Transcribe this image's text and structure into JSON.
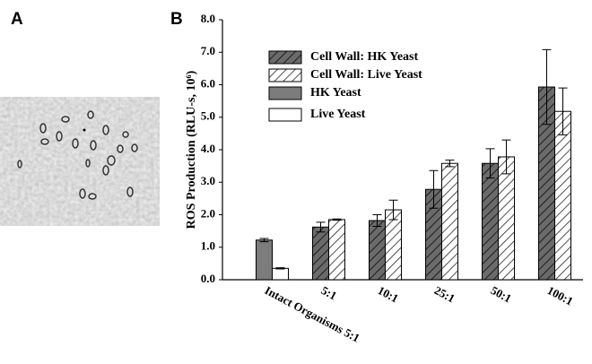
{
  "panel_labels": [
    "A",
    "B"
  ],
  "chart_data": {
    "type": "bar",
    "y_label": "ROS Production (RLU-s, 10⁶)",
    "categories": [
      "Intact Organisms 5:1",
      "5:1",
      "10:1",
      "25:1",
      "50:1",
      "100:1"
    ],
    "series": [
      {
        "name": "Cell Wall: HK Yeast",
        "color": "#6b6b6b",
        "hatch": true,
        "values": [
          null,
          1.62,
          1.82,
          2.78,
          3.58,
          5.93
        ],
        "errors": [
          null,
          0.15,
          0.18,
          0.58,
          0.45,
          1.15
        ]
      },
      {
        "name": "Cell Wall: Live Yeast",
        "color": "#ffffff",
        "hatch": true,
        "values": [
          null,
          1.85,
          2.15,
          3.58,
          3.78,
          5.18
        ],
        "errors": [
          null,
          0.02,
          0.3,
          0.1,
          0.52,
          0.72
        ]
      },
      {
        "name": "HK Yeast",
        "color": "#7c7c7c",
        "hatch": false,
        "values": [
          1.22,
          null,
          null,
          null,
          null,
          null
        ],
        "errors": [
          0.05,
          null,
          null,
          null,
          null,
          null
        ]
      },
      {
        "name": "Live Yeast",
        "color": "#ffffff",
        "hatch": false,
        "values": [
          0.35,
          null,
          null,
          null,
          null,
          null
        ],
        "errors": [
          0.02,
          null,
          null,
          null,
          null,
          null
        ]
      }
    ],
    "ylim": [
      0,
      8
    ],
    "yticks": [
      {
        "value": 0,
        "label": "0.0"
      },
      {
        "value": 1,
        "label": "1.0"
      },
      {
        "value": 2,
        "label": "2.0"
      },
      {
        "value": 3,
        "label": "3.0"
      },
      {
        "value": 4,
        "label": "4.0"
      },
      {
        "value": 5,
        "label": "5.0"
      },
      {
        "value": 6,
        "label": "6.0"
      },
      {
        "value": 7,
        "label": "7.0"
      },
      {
        "value": 8,
        "label": "8.0"
      }
    ],
    "legend": "upper left"
  }
}
